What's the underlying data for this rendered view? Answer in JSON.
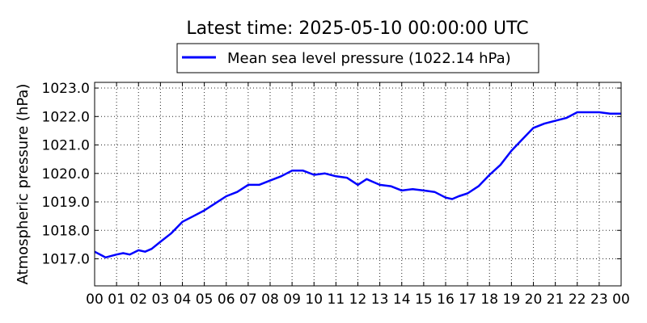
{
  "chart_data": {
    "type": "line",
    "title": "Latest time: 2025-05-10 00:00:00 UTC",
    "ylabel": "Atmospheric pressure (hPa)",
    "xlabel": "",
    "x_range_hours": [
      0,
      24
    ],
    "ylim": [
      1016.05,
      1023.2
    ],
    "grid": true,
    "legend_position": "top-center",
    "series_color": "#0000ff",
    "x_tick_labels": [
      "00",
      "01",
      "02",
      "03",
      "04",
      "05",
      "06",
      "07",
      "08",
      "09",
      "10",
      "11",
      "12",
      "13",
      "14",
      "15",
      "16",
      "17",
      "18",
      "19",
      "20",
      "21",
      "22",
      "23",
      "00"
    ],
    "y_ticks": [
      1017.0,
      1018.0,
      1019.0,
      1020.0,
      1021.0,
      1022.0,
      1023.0
    ],
    "y_tick_labels": [
      "1017.0",
      "1018.0",
      "1019.0",
      "1020.0",
      "1021.0",
      "1022.0",
      "1023.0"
    ],
    "series": [
      {
        "name": "Mean sea level pressure (1022.14 hPa)",
        "x": [
          0,
          0.5,
          1,
          1.3,
          1.6,
          2,
          2.3,
          2.6,
          3,
          3.5,
          4,
          4.5,
          5,
          5.5,
          6,
          6.5,
          7,
          7.5,
          8,
          8.5,
          9,
          9.5,
          10,
          10.5,
          11,
          11.5,
          12,
          12.4,
          12.7,
          13,
          13.5,
          14,
          14.5,
          15,
          15.5,
          16,
          16.3,
          16.6,
          17,
          17.5,
          18,
          18.5,
          19,
          19.5,
          20,
          20.5,
          21,
          21.5,
          22,
          22.5,
          23,
          23.5,
          24
        ],
        "y": [
          1017.25,
          1017.05,
          1017.15,
          1017.2,
          1017.15,
          1017.3,
          1017.25,
          1017.35,
          1017.6,
          1017.9,
          1018.3,
          1018.5,
          1018.7,
          1018.95,
          1019.2,
          1019.35,
          1019.6,
          1019.6,
          1019.75,
          1019.9,
          1020.1,
          1020.1,
          1019.95,
          1020.0,
          1019.9,
          1019.85,
          1019.6,
          1019.8,
          1019.7,
          1019.6,
          1019.55,
          1019.4,
          1019.45,
          1019.4,
          1019.35,
          1019.15,
          1019.1,
          1019.2,
          1019.3,
          1019.55,
          1019.95,
          1020.3,
          1020.8,
          1021.2,
          1021.6,
          1021.75,
          1021.85,
          1021.95,
          1022.15,
          1022.15,
          1022.15,
          1022.1,
          1022.1
        ]
      }
    ]
  }
}
